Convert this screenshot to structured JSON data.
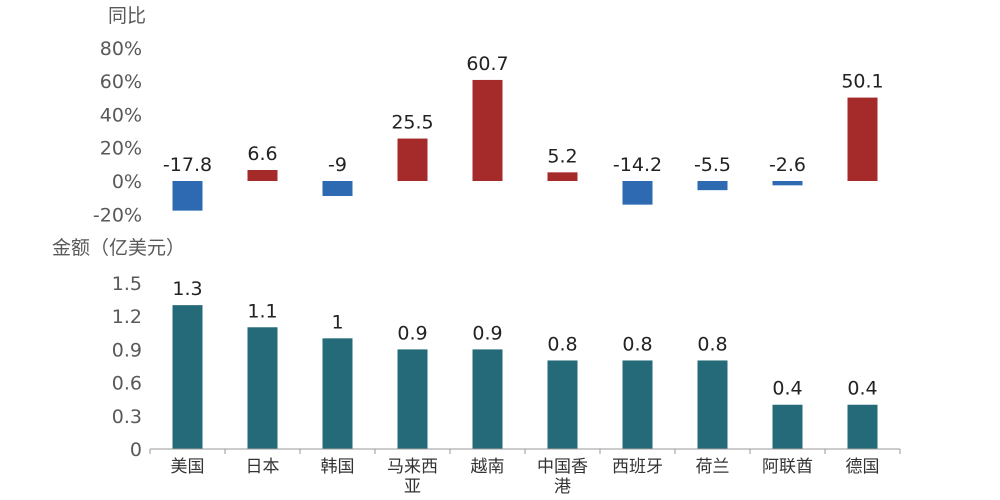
{
  "chart_data": [
    {
      "type": "bar",
      "ylabel": "同比",
      "categories": [
        "美国",
        "日本",
        "韩国",
        "马来西亚",
        "越南",
        "中国香港",
        "西班牙",
        "荷兰",
        "阿联酋",
        "德国"
      ],
      "values": [
        -17.8,
        6.6,
        -9,
        25.5,
        60.7,
        5.2,
        -14.2,
        -5.5,
        -2.6,
        50.1
      ],
      "data_labels": [
        "-17.8",
        "6.6",
        "-9",
        "25.5",
        "60.7",
        "5.2",
        "-14.2",
        "-5.5",
        "-2.6",
        "50.1"
      ],
      "ylim": [
        -20,
        80
      ],
      "yticks": [
        "-20%",
        "0%",
        "20%",
        "40%",
        "60%",
        "80%"
      ],
      "grid": false,
      "colors": {
        "positive": "#a52a2a",
        "negative": "#2e6ab1"
      }
    },
    {
      "type": "bar",
      "ylabel": "金额（亿美元）",
      "categories": [
        "美国",
        "日本",
        "韩国",
        "马来西亚",
        "越南",
        "中国香港",
        "西班牙",
        "荷兰",
        "阿联酋",
        "德国"
      ],
      "category_lines": [
        [
          "美国"
        ],
        [
          "日本"
        ],
        [
          "韩国"
        ],
        [
          "马来西",
          "亚"
        ],
        [
          "越南"
        ],
        [
          "中国香",
          "港"
        ],
        [
          "西班牙"
        ],
        [
          "荷兰"
        ],
        [
          "阿联酋"
        ],
        [
          "德国"
        ]
      ],
      "values": [
        1.3,
        1.1,
        1.0,
        0.9,
        0.9,
        0.8,
        0.8,
        0.8,
        0.4,
        0.4
      ],
      "data_labels": [
        "1.3",
        "1.1",
        "1",
        "0.9",
        "0.9",
        "0.8",
        "0.8",
        "0.8",
        "0.4",
        "0.4"
      ],
      "ylim": [
        0,
        1.5
      ],
      "yticks": [
        "0",
        "0.3",
        "0.6",
        "0.9",
        "1.2",
        "1.5"
      ],
      "grid": false,
      "colors": {
        "bar": "#256a78",
        "axis": "#9a9a9a"
      }
    }
  ]
}
